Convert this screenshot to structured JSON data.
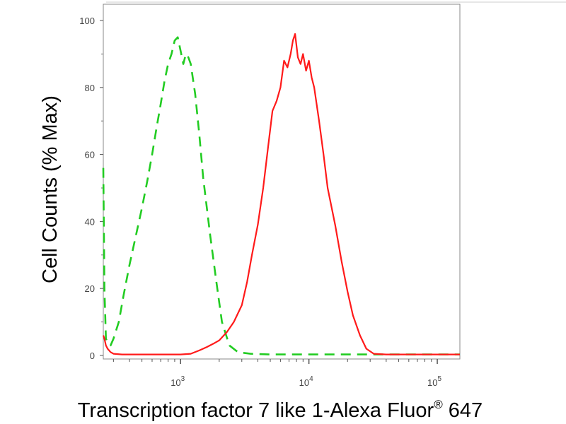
{
  "chart_data": {
    "type": "line",
    "title": "",
    "xlabel": {
      "main": "Transcription factor 7 like 1-Alexa Fluor",
      "sup": "®",
      "tail": " 647"
    },
    "ylabel": "Cell Counts (% Max)",
    "x_scale": "log",
    "xlim": [
      250,
      150000
    ],
    "ylim": [
      0,
      100
    ],
    "grid": false,
    "y_ticks": [
      0,
      20,
      40,
      60,
      80,
      100
    ],
    "y_tick_labels": [
      "0",
      "20",
      "40",
      "60",
      "80",
      "100"
    ],
    "x_ticks": [
      1000,
      10000,
      100000
    ],
    "x_tick_labels": [
      {
        "base": "10",
        "exp": "3"
      },
      {
        "base": "10",
        "exp": "4"
      },
      {
        "base": "10",
        "exp": "5"
      }
    ],
    "series": [
      {
        "color": "#22cc22",
        "dash": "dashed",
        "x": [
          250,
          255,
          262,
          270,
          285,
          300,
          330,
          360,
          400,
          450,
          500,
          550,
          600,
          650,
          700,
          750,
          800,
          850,
          900,
          950,
          1000,
          1050,
          1100,
          1150,
          1200,
          1300,
          1400,
          1500,
          1700,
          1900,
          2100,
          2400,
          2800,
          3500,
          5000,
          10000,
          50000,
          150000
        ],
        "y": [
          56,
          20,
          5,
          4,
          3,
          5,
          10,
          18,
          27,
          36,
          44,
          52,
          60,
          68,
          75,
          82,
          87,
          90,
          94,
          95,
          91,
          87,
          90,
          89,
          87,
          78,
          66,
          53,
          36,
          22,
          10,
          3,
          1,
          0.5,
          0.3,
          0.3,
          0.3,
          0.3
        ]
      },
      {
        "color": "#ff1a1a",
        "dash": "solid",
        "x": [
          250,
          255,
          262,
          270,
          285,
          300,
          350,
          500,
          700,
          1000,
          1200,
          1400,
          1600,
          1800,
          2000,
          2300,
          2600,
          3000,
          3300,
          3600,
          4000,
          4400,
          4800,
          5200,
          5600,
          6000,
          6400,
          6800,
          7200,
          7500,
          7800,
          8200,
          8600,
          9000,
          9500,
          10000,
          10500,
          11000,
          12000,
          13000,
          14000,
          16000,
          18000,
          20000,
          22000,
          25000,
          28000,
          32000,
          40000,
          60000,
          100000,
          150000
        ],
        "y": [
          6,
          5,
          3,
          2,
          1,
          0.5,
          0.3,
          0.3,
          0.3,
          0.3,
          0.5,
          1.5,
          2.5,
          3.5,
          4.5,
          7,
          10,
          15,
          22,
          30,
          39,
          50,
          62,
          73,
          76,
          80,
          88,
          86,
          90,
          94,
          96,
          89,
          87,
          90,
          85,
          88,
          83,
          80,
          70,
          60,
          50,
          39,
          28,
          19,
          12,
          6,
          2,
          0.5,
          0.3,
          0.3,
          0.3,
          0.3
        ]
      }
    ]
  }
}
